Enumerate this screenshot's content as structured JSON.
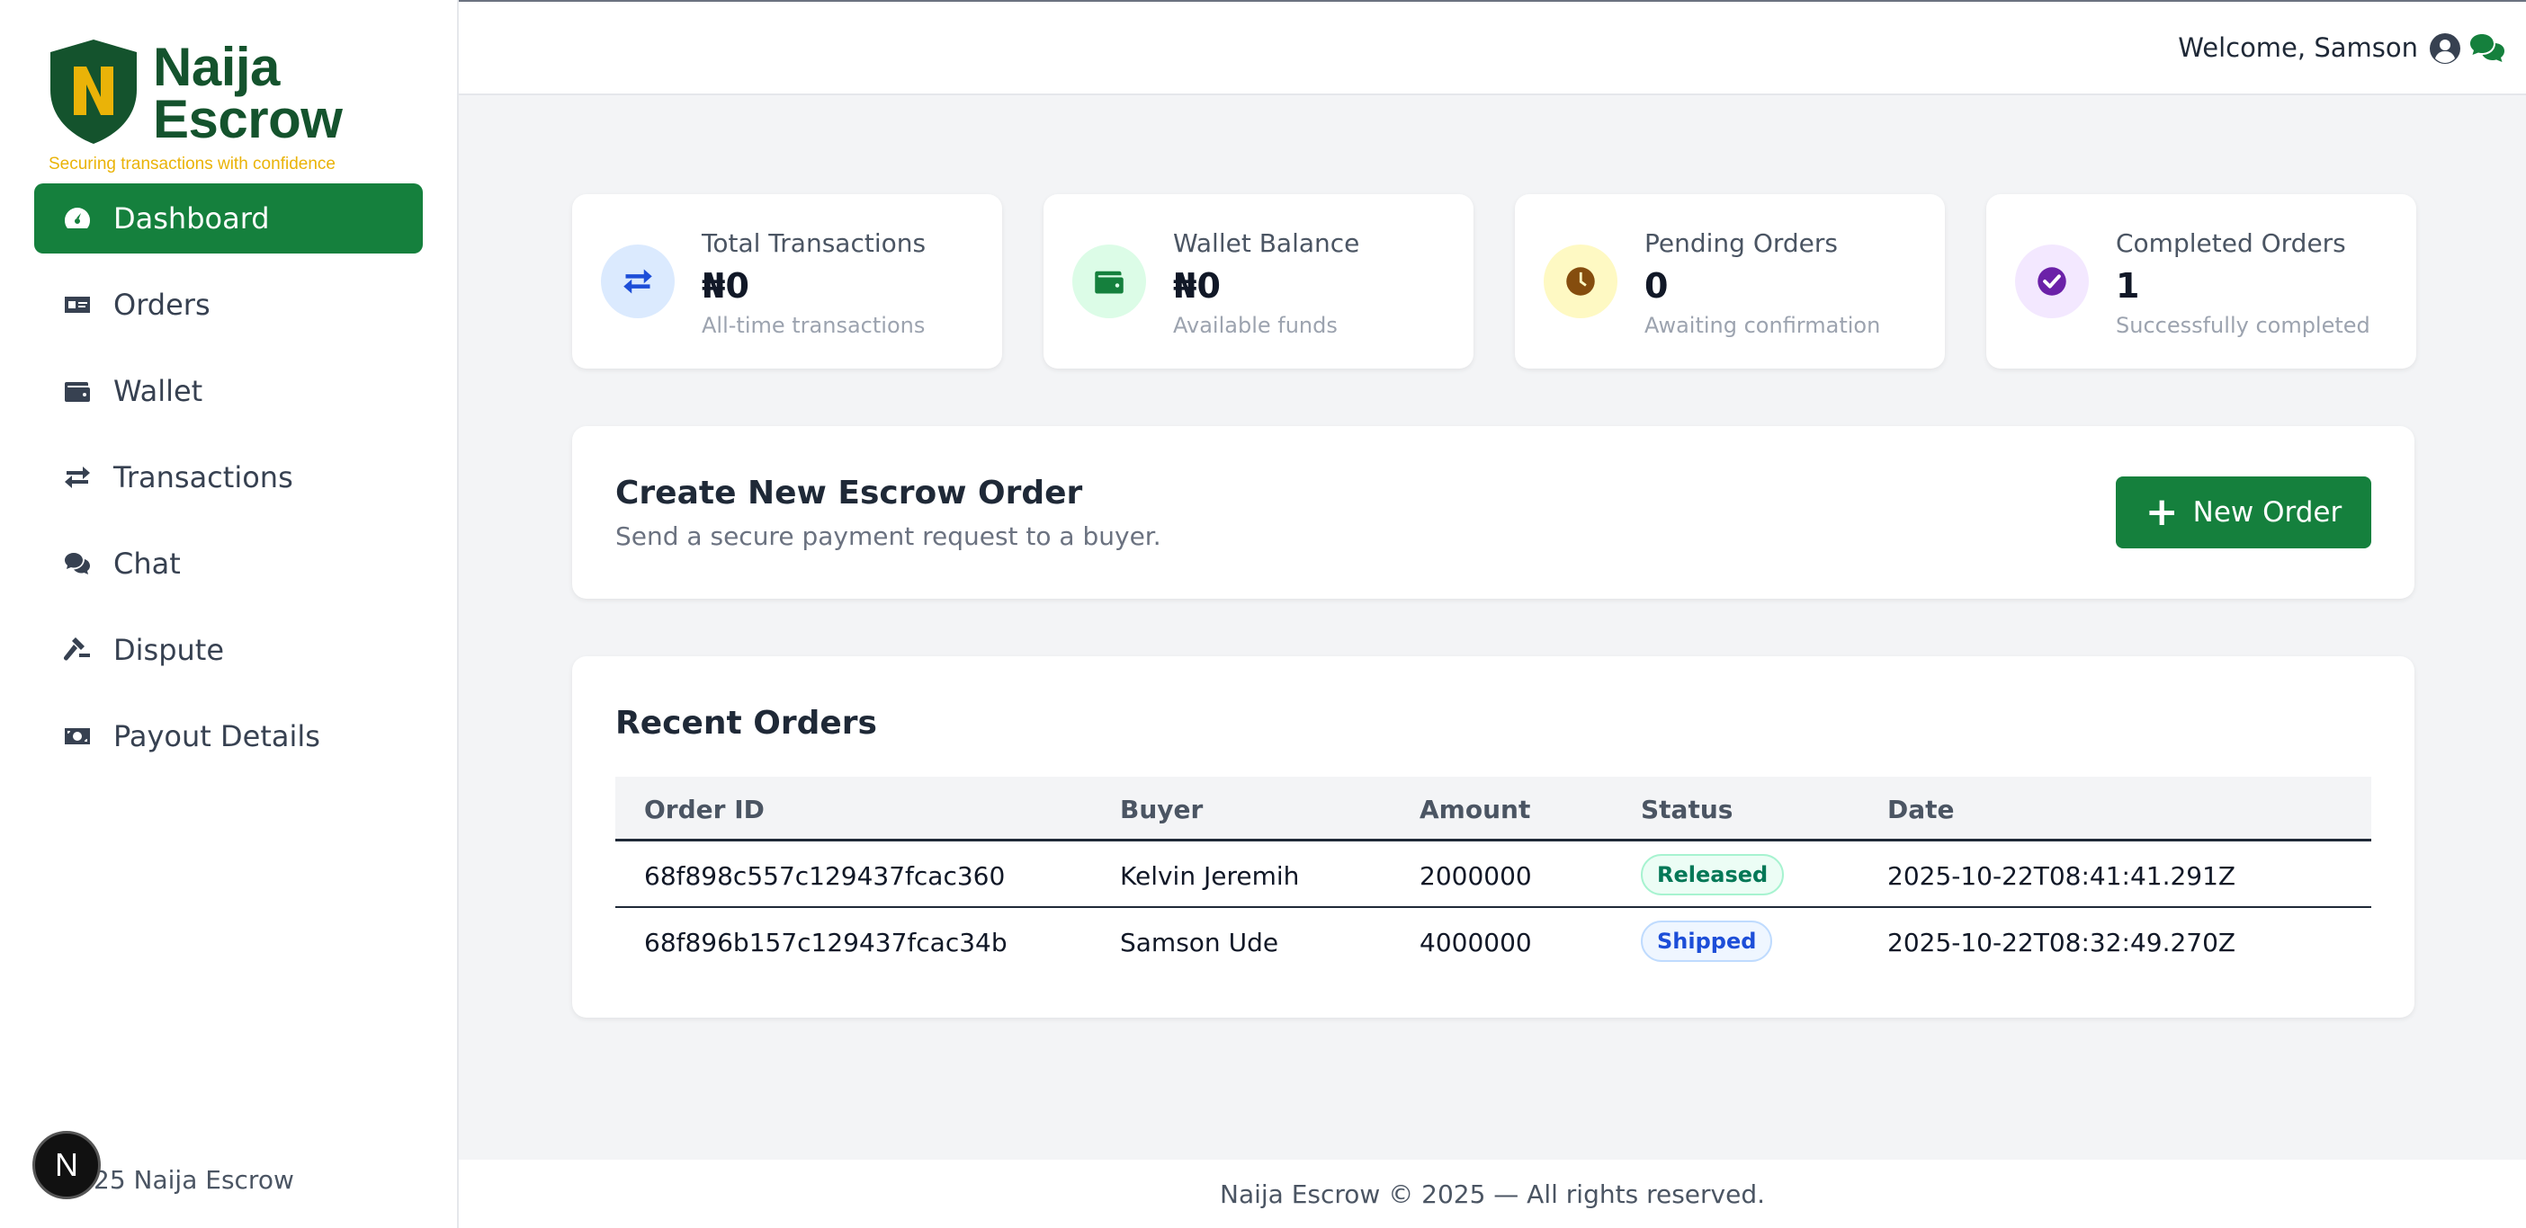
{
  "brand": {
    "name_line1": "Naija",
    "name_line2": "Escrow",
    "tagline": "Securing transactions with confidence",
    "logo_letter": "N",
    "colors": {
      "primary": "#15803d",
      "dark": "#14532d",
      "gold": "#eab308"
    }
  },
  "sidebar": {
    "items": [
      {
        "label": "Dashboard",
        "icon": "gauge-icon",
        "active": true
      },
      {
        "label": "Orders",
        "icon": "money-check-icon",
        "active": false
      },
      {
        "label": "Wallet",
        "icon": "wallet-icon",
        "active": false
      },
      {
        "label": "Transactions",
        "icon": "arrows-exchange-icon",
        "active": false
      },
      {
        "label": "Chat",
        "icon": "comments-icon",
        "active": false
      },
      {
        "label": "Dispute",
        "icon": "gavel-icon",
        "active": false
      },
      {
        "label": "Payout Details",
        "icon": "money-bill-icon",
        "active": false
      }
    ],
    "footer": "25 Naija Escrow",
    "next_badge": "N"
  },
  "topbar": {
    "welcome": "Welcome, Samson",
    "user_icon": "user-circle-icon",
    "chat_icon": "comments-icon"
  },
  "stats": [
    {
      "title": "Total Transactions",
      "value": "₦0",
      "sub": "All-time transactions",
      "icon": "exchange-icon",
      "bg": "#dbeafe",
      "fg": "#1d4ed8"
    },
    {
      "title": "Wallet Balance",
      "value": "₦0",
      "sub": "Available funds",
      "icon": "wallet-icon",
      "bg": "#dcfce7",
      "fg": "#15803d"
    },
    {
      "title": "Pending Orders",
      "value": "0",
      "sub": "Awaiting confirmation",
      "icon": "clock-icon",
      "bg": "#fef9c3",
      "fg": "#854d0e"
    },
    {
      "title": "Completed Orders",
      "value": "1",
      "sub": "Successfully completed",
      "icon": "check-circle-icon",
      "bg": "#f3e8ff",
      "fg": "#6b21a8"
    }
  ],
  "create_order": {
    "title": "Create New Escrow Order",
    "subtitle": "Send a secure payment request to a buyer.",
    "button": "New Order",
    "button_icon": "+"
  },
  "recent_orders": {
    "title": "Recent Orders",
    "columns": [
      "Order ID",
      "Buyer",
      "Amount",
      "Status",
      "Date"
    ],
    "rows": [
      {
        "id": "68f898c557c129437fcac360",
        "buyer": "Kelvin Jeremih",
        "amount": "2000000",
        "status": "Released",
        "date": "2025-10-22T08:41:41.291Z"
      },
      {
        "id": "68f896b157c129437fcac34b",
        "buyer": "Samson Ude",
        "amount": "4000000",
        "status": "Shipped",
        "date": "2025-10-22T08:32:49.270Z"
      }
    ]
  },
  "footer": {
    "text": "Naija Escrow © 2025 — All rights reserved."
  }
}
